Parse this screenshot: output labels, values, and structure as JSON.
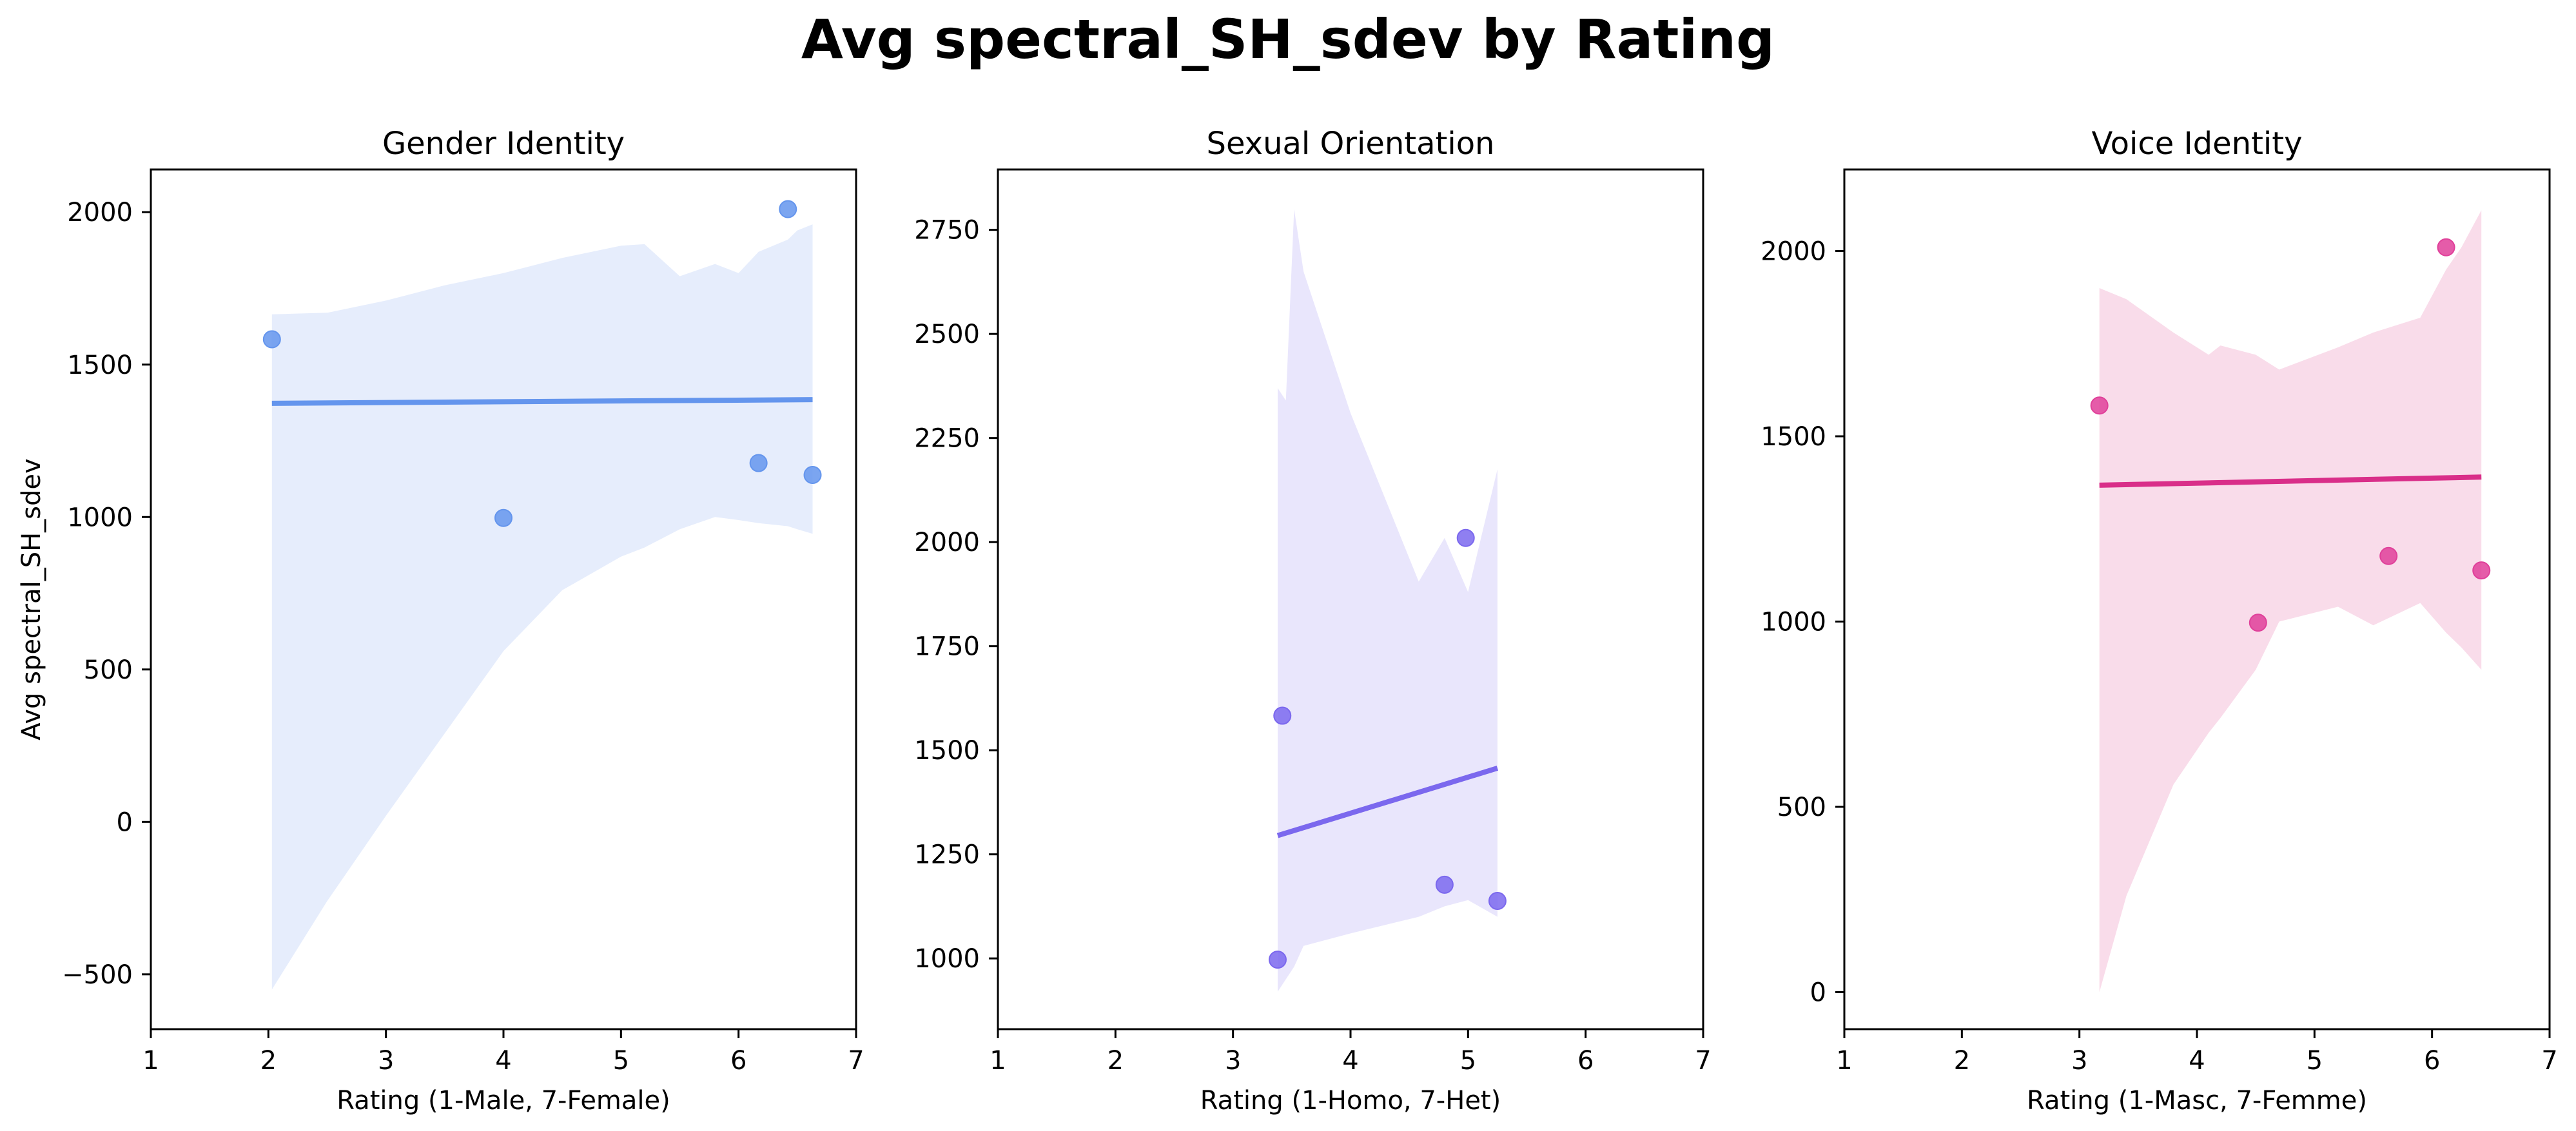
{
  "figure": {
    "title": "Avg spectral_SH_sdev by Rating"
  },
  "chart_data": [
    {
      "type": "scatter",
      "title": "Gender Identity",
      "xlabel": "Rating (1-Male, 7-Female)",
      "ylabel": "Avg spectral_SH_sdev",
      "xlim": [
        1,
        7
      ],
      "ylim": [
        -680,
        2140
      ],
      "xticks": [
        1,
        2,
        3,
        4,
        5,
        6,
        7
      ],
      "yticks": [
        -500,
        0,
        500,
        1000,
        1500,
        2000
      ],
      "grid": false,
      "colors": {
        "point": "#6495ed",
        "line": "#6495ed",
        "band": "#e6edfc"
      },
      "points": [
        {
          "x": 2.03,
          "y": 1583
        },
        {
          "x": 4.0,
          "y": 997
        },
        {
          "x": 6.17,
          "y": 1177
        },
        {
          "x": 6.42,
          "y": 2010
        },
        {
          "x": 6.63,
          "y": 1138
        }
      ],
      "regression": {
        "x": [
          2.03,
          6.63
        ],
        "y": [
          1373,
          1385
        ]
      },
      "confidence_band": {
        "x": [
          2.03,
          2.5,
          3,
          3.5,
          4,
          4.5,
          5,
          5.2,
          5.5,
          5.8,
          6,
          6.17,
          6.42,
          6.5,
          6.63
        ],
        "upper": [
          1665,
          1670,
          1710,
          1760,
          1800,
          1850,
          1890,
          1895,
          1790,
          1830,
          1800,
          1870,
          1910,
          1940,
          1960
        ],
        "lower": [
          -550,
          -260,
          20,
          290,
          560,
          760,
          870,
          900,
          960,
          1000,
          990,
          980,
          970,
          960,
          945
        ]
      }
    },
    {
      "type": "scatter",
      "title": "Sexual Orientation",
      "xlabel": "Rating (1-Homo, 7-Het)",
      "ylabel": "",
      "xlim": [
        1,
        7
      ],
      "ylim": [
        830,
        2895
      ],
      "xticks": [
        1,
        2,
        3,
        4,
        5,
        6,
        7
      ],
      "yticks": [
        1000,
        1250,
        1500,
        1750,
        2000,
        2250,
        2500,
        2750
      ],
      "grid": false,
      "colors": {
        "point": "#7b68ee",
        "line": "#7b68ee",
        "band": "#e9e6fc"
      },
      "points": [
        {
          "x": 3.38,
          "y": 997
        },
        {
          "x": 3.42,
          "y": 1583
        },
        {
          "x": 4.8,
          "y": 1177
        },
        {
          "x": 4.98,
          "y": 2010
        },
        {
          "x": 5.25,
          "y": 1138
        }
      ],
      "regression": {
        "x": [
          3.38,
          5.25
        ],
        "y": [
          1295,
          1457
        ]
      },
      "confidence_band": {
        "x": [
          3.38,
          3.45,
          3.52,
          3.6,
          4.0,
          4.58,
          4.8,
          5.0,
          5.25
        ],
        "upper": [
          2370,
          2340,
          2800,
          2650,
          2310,
          1905,
          2010,
          1880,
          2175
        ],
        "lower": [
          920,
          950,
          980,
          1030,
          1060,
          1100,
          1125,
          1140,
          1100
        ]
      }
    },
    {
      "type": "scatter",
      "title": "Voice Identity",
      "xlabel": "Rating (1-Masc, 7-Femme)",
      "ylabel": "",
      "xlim": [
        1,
        7
      ],
      "ylim": [
        -100,
        2220
      ],
      "xticks": [
        1,
        2,
        3,
        4,
        5,
        6,
        7
      ],
      "yticks": [
        0,
        500,
        1000,
        1500,
        2000
      ],
      "grid": false,
      "colors": {
        "point": "#e0409a",
        "line": "#d92e89",
        "band": "#f9dcea"
      },
      "points": [
        {
          "x": 3.17,
          "y": 1583
        },
        {
          "x": 4.52,
          "y": 997
        },
        {
          "x": 5.63,
          "y": 1177
        },
        {
          "x": 6.12,
          "y": 2010
        },
        {
          "x": 6.42,
          "y": 1138
        }
      ],
      "regression": {
        "x": [
          3.17,
          6.42
        ],
        "y": [
          1368,
          1390
        ]
      },
      "confidence_band": {
        "x": [
          3.17,
          3.4,
          3.8,
          4.1,
          4.2,
          4.5,
          4.7,
          5.2,
          5.5,
          5.9,
          6.12,
          6.25,
          6.42
        ],
        "upper": [
          1900,
          1870,
          1780,
          1720,
          1745,
          1720,
          1680,
          1740,
          1780,
          1820,
          1950,
          2010,
          2110
        ],
        "lower": [
          0,
          260,
          560,
          700,
          740,
          870,
          1000,
          1040,
          990,
          1050,
          970,
          930,
          870
        ]
      }
    }
  ]
}
